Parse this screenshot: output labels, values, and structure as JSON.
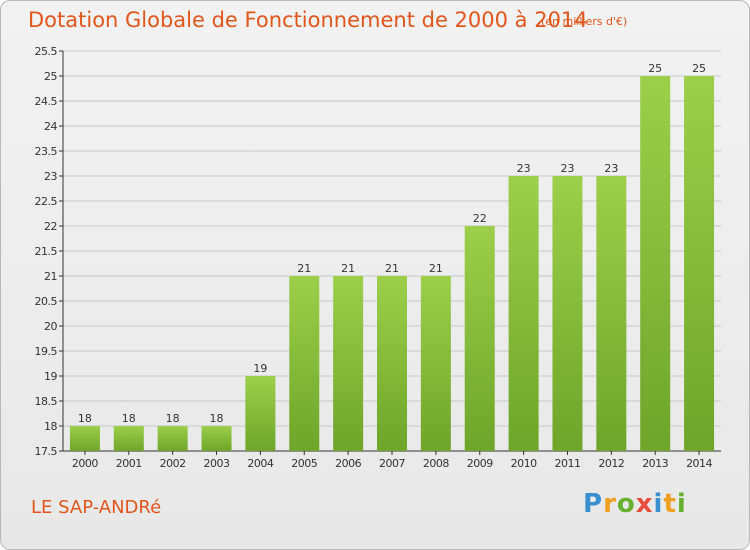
{
  "title": "Dotation Globale de Fonctionnement de 2000 à 2014",
  "subtitle": "(en milliers d'€)",
  "commune": "LE SAP-ANDRé",
  "logo": {
    "letters": [
      "P",
      "r",
      "o",
      "x",
      "i",
      "t",
      "i"
    ],
    "colors": [
      "#3a8fd1",
      "#f0a020",
      "#66b032",
      "#e94d3c",
      "#3a8fd1",
      "#f0a020",
      "#66b032"
    ]
  },
  "colors": {
    "title": "#e2561b",
    "bar_light": "#9ccf4a",
    "bar_dark": "#6ea52a",
    "grid": "#c8c8c8",
    "axis": "#333333"
  },
  "chart_data": {
    "type": "bar",
    "title": "Dotation Globale de Fonctionnement de 2000 à 2014",
    "subtitle": "(en milliers d'€)",
    "categories": [
      "2000",
      "2001",
      "2002",
      "2003",
      "2004",
      "2005",
      "2006",
      "2007",
      "2008",
      "2009",
      "2010",
      "2011",
      "2012",
      "2013",
      "2014"
    ],
    "values": [
      18,
      18,
      18,
      18,
      19,
      21,
      21,
      21,
      21,
      22,
      23,
      23,
      23,
      25,
      25
    ],
    "labels": [
      "18",
      "18",
      "18",
      "18",
      "19",
      "21",
      "21",
      "21",
      "21",
      "22",
      "23",
      "23",
      "23",
      "25",
      "25"
    ],
    "ylim": [
      17.5,
      25.5
    ],
    "yticks": [
      "17.5",
      "18",
      "18.5",
      "19",
      "19.5",
      "20",
      "20.5",
      "21",
      "21.5",
      "22",
      "22.5",
      "23",
      "23.5",
      "24",
      "24.5",
      "25",
      "25.5"
    ],
    "grid": true,
    "xlabel": "",
    "ylabel": ""
  }
}
